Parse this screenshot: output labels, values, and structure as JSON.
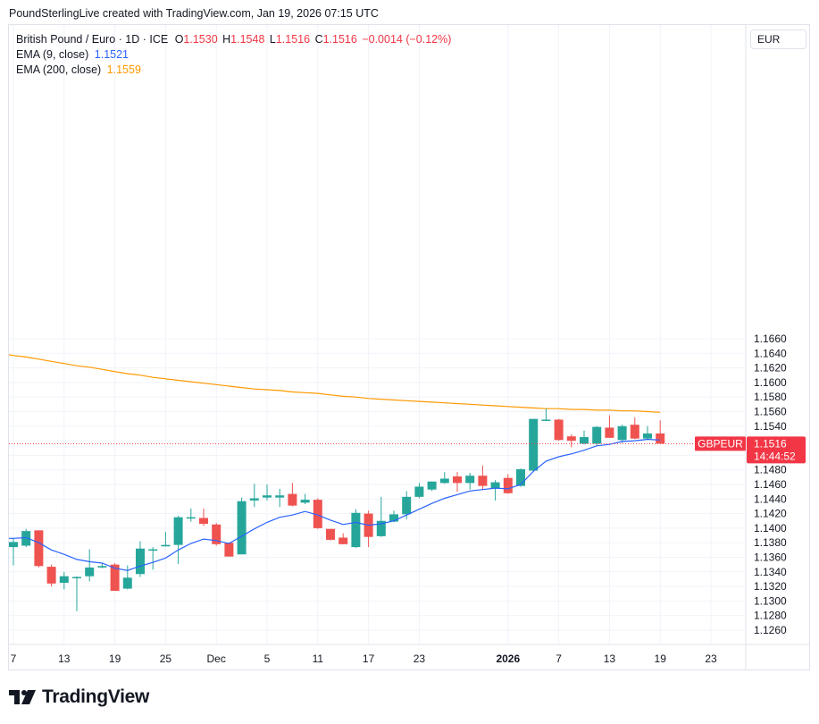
{
  "header": {
    "attribution": "PoundSterlingLive created with TradingView.com, Jan 19, 2026 07:15 UTC"
  },
  "legend": {
    "symbol": "British Pound / Euro · 1D · ICE",
    "o_label": "O",
    "o_value": "1.1530",
    "h_label": "H",
    "h_value": "1.1548",
    "l_label": "L",
    "l_value": "1.1516",
    "c_label": "C",
    "c_value": "1.1516",
    "change": "−0.0014 (−0.12%)",
    "ema9_label": "EMA (9, close)",
    "ema9_value": "1.1521",
    "ema200_label": "EMA (200, close)",
    "ema200_value": "1.1559"
  },
  "currency_button": "EUR",
  "price_tag": {
    "symbol": "GBPEUR",
    "price": "1.1516",
    "countdown": "14:44:52"
  },
  "logo_text": "TradingView",
  "colors": {
    "up": "#26a69a",
    "down": "#ef5350",
    "ema9": "#2962ff",
    "ema200": "#ff9800",
    "grid": "#f0f3fa",
    "tag": "#f23645"
  },
  "chart_data": {
    "type": "candlestick",
    "y_range": [
      1.125,
      1.166
    ],
    "y_ticks": [
      "1.1260",
      "1.1280",
      "1.1300",
      "1.1320",
      "1.1340",
      "1.1360",
      "1.1380",
      "1.1400",
      "1.1420",
      "1.1440",
      "1.1460",
      "1.1480",
      "1.1500",
      "1.1520",
      "1.1540",
      "1.1560",
      "1.1580",
      "1.1600",
      "1.1620",
      "1.1640",
      "1.1660"
    ],
    "x_ticks": [
      {
        "label": "7",
        "idx": 0
      },
      {
        "label": "13",
        "idx": 4
      },
      {
        "label": "19",
        "idx": 8
      },
      {
        "label": "25",
        "idx": 12
      },
      {
        "label": "Dec",
        "idx": 16
      },
      {
        "label": "5",
        "idx": 20
      },
      {
        "label": "11",
        "idx": 24
      },
      {
        "label": "17",
        "idx": 28
      },
      {
        "label": "23",
        "idx": 32
      },
      {
        "label": "2026",
        "idx": 39
      },
      {
        "label": "7",
        "idx": 43
      },
      {
        "label": "13",
        "idx": 47
      },
      {
        "label": "19",
        "idx": 51
      },
      {
        "label": "23",
        "idx": 55
      }
    ],
    "candles": [
      {
        "o": 1.1374,
        "h": 1.1386,
        "l": 1.1349,
        "c": 1.1381
      },
      {
        "o": 1.1376,
        "h": 1.1399,
        "l": 1.1374,
        "c": 1.1396
      },
      {
        "o": 1.1397,
        "h": 1.1397,
        "l": 1.1346,
        "c": 1.1348
      },
      {
        "o": 1.1347,
        "h": 1.135,
        "l": 1.132,
        "c": 1.1324
      },
      {
        "o": 1.1325,
        "h": 1.134,
        "l": 1.1316,
        "c": 1.1334
      },
      {
        "o": 1.1332,
        "h": 1.1334,
        "l": 1.1286,
        "c": 1.1333
      },
      {
        "o": 1.1334,
        "h": 1.1371,
        "l": 1.1327,
        "c": 1.1346
      },
      {
        "o": 1.1346,
        "h": 1.1351,
        "l": 1.1345,
        "c": 1.1348
      },
      {
        "o": 1.135,
        "h": 1.1352,
        "l": 1.1314,
        "c": 1.1314
      },
      {
        "o": 1.1317,
        "h": 1.1349,
        "l": 1.1316,
        "c": 1.1332
      },
      {
        "o": 1.1337,
        "h": 1.1382,
        "l": 1.1333,
        "c": 1.1372
      },
      {
        "o": 1.1371,
        "h": 1.1374,
        "l": 1.1343,
        "c": 1.1371
      },
      {
        "o": 1.1375,
        "h": 1.1395,
        "l": 1.1375,
        "c": 1.1377
      },
      {
        "o": 1.1377,
        "h": 1.1417,
        "l": 1.1351,
        "c": 1.1415
      },
      {
        "o": 1.1415,
        "h": 1.1427,
        "l": 1.1409,
        "c": 1.1415
      },
      {
        "o": 1.1414,
        "h": 1.1427,
        "l": 1.1403,
        "c": 1.1406
      },
      {
        "o": 1.1405,
        "h": 1.1407,
        "l": 1.1376,
        "c": 1.1378
      },
      {
        "o": 1.138,
        "h": 1.138,
        "l": 1.1361,
        "c": 1.1361
      },
      {
        "o": 1.1364,
        "h": 1.1442,
        "l": 1.1364,
        "c": 1.1437
      },
      {
        "o": 1.1438,
        "h": 1.1461,
        "l": 1.1429,
        "c": 1.1441
      },
      {
        "o": 1.1442,
        "h": 1.146,
        "l": 1.1438,
        "c": 1.1445
      },
      {
        "o": 1.1442,
        "h": 1.1454,
        "l": 1.1429,
        "c": 1.1445
      },
      {
        "o": 1.1447,
        "h": 1.1462,
        "l": 1.143,
        "c": 1.1431
      },
      {
        "o": 1.1435,
        "h": 1.1447,
        "l": 1.1433,
        "c": 1.1439
      },
      {
        "o": 1.1439,
        "h": 1.1441,
        "l": 1.1399,
        "c": 1.14
      },
      {
        "o": 1.1399,
        "h": 1.1399,
        "l": 1.1383,
        "c": 1.1384
      },
      {
        "o": 1.1387,
        "h": 1.1393,
        "l": 1.1378,
        "c": 1.1378
      },
      {
        "o": 1.1374,
        "h": 1.1426,
        "l": 1.1373,
        "c": 1.1421
      },
      {
        "o": 1.142,
        "h": 1.1424,
        "l": 1.1374,
        "c": 1.1388
      },
      {
        "o": 1.1389,
        "h": 1.1443,
        "l": 1.1388,
        "c": 1.141
      },
      {
        "o": 1.1409,
        "h": 1.1424,
        "l": 1.1408,
        "c": 1.1419
      },
      {
        "o": 1.1419,
        "h": 1.1451,
        "l": 1.1412,
        "c": 1.1443
      },
      {
        "o": 1.1443,
        "h": 1.1462,
        "l": 1.1441,
        "c": 1.1457
      },
      {
        "o": 1.1453,
        "h": 1.1464,
        "l": 1.1451,
        "c": 1.1464
      },
      {
        "o": 1.1462,
        "h": 1.1477,
        "l": 1.1461,
        "c": 1.1468
      },
      {
        "o": 1.1471,
        "h": 1.1477,
        "l": 1.145,
        "c": 1.1462
      },
      {
        "o": 1.1462,
        "h": 1.1476,
        "l": 1.1453,
        "c": 1.1472
      },
      {
        "o": 1.1472,
        "h": 1.1486,
        "l": 1.1452,
        "c": 1.1458
      },
      {
        "o": 1.1455,
        "h": 1.1466,
        "l": 1.1438,
        "c": 1.1463
      },
      {
        "o": 1.1469,
        "h": 1.1474,
        "l": 1.1447,
        "c": 1.1448
      },
      {
        "o": 1.1458,
        "h": 1.1482,
        "l": 1.1457,
        "c": 1.1481
      },
      {
        "o": 1.1479,
        "h": 1.155,
        "l": 1.1478,
        "c": 1.155
      },
      {
        "o": 1.1549,
        "h": 1.1564,
        "l": 1.1548,
        "c": 1.1549
      },
      {
        "o": 1.1549,
        "h": 1.155,
        "l": 1.152,
        "c": 1.1521
      },
      {
        "o": 1.1526,
        "h": 1.1529,
        "l": 1.1511,
        "c": 1.152
      },
      {
        "o": 1.1516,
        "h": 1.1534,
        "l": 1.1515,
        "c": 1.1525
      },
      {
        "o": 1.1516,
        "h": 1.154,
        "l": 1.1514,
        "c": 1.1539
      },
      {
        "o": 1.1538,
        "h": 1.1555,
        "l": 1.1524,
        "c": 1.1524
      },
      {
        "o": 1.1521,
        "h": 1.1542,
        "l": 1.1517,
        "c": 1.154
      },
      {
        "o": 1.1542,
        "h": 1.1552,
        "l": 1.1522,
        "c": 1.1523
      },
      {
        "o": 1.1523,
        "h": 1.154,
        "l": 1.1522,
        "c": 1.153
      },
      {
        "o": 1.153,
        "h": 1.1548,
        "l": 1.1516,
        "c": 1.1516
      }
    ],
    "ema9": [
      1.1386,
      1.1387,
      1.138,
      1.137,
      1.1364,
      1.1357,
      1.1354,
      1.1352,
      1.1345,
      1.1342,
      1.1348,
      1.1353,
      1.1359,
      1.137,
      1.1379,
      1.1385,
      1.1383,
      1.1379,
      1.1389,
      1.1399,
      1.1408,
      1.1415,
      1.1418,
      1.1423,
      1.1418,
      1.1411,
      1.1405,
      1.1408,
      1.1404,
      1.1406,
      1.141,
      1.1418,
      1.1426,
      1.1434,
      1.1441,
      1.1446,
      1.1451,
      1.1453,
      1.1455,
      1.1454,
      1.146,
      1.1478,
      1.1492,
      1.1498,
      1.1502,
      1.1507,
      1.1513,
      1.1515,
      1.1519,
      1.152,
      1.1522,
      1.1521
    ],
    "ema200": [
      1.1637,
      1.1635,
      1.1632,
      1.1629,
      1.1626,
      1.1623,
      1.1621,
      1.1618,
      1.1615,
      1.1612,
      1.161,
      1.1607,
      1.1605,
      1.1603,
      1.1601,
      1.1599,
      1.1597,
      1.1595,
      1.1593,
      1.1591,
      1.159,
      1.1589,
      1.1587,
      1.1586,
      1.1585,
      1.1583,
      1.1581,
      1.158,
      1.1578,
      1.1577,
      1.1576,
      1.1575,
      1.1574,
      1.1573,
      1.1572,
      1.1571,
      1.157,
      1.1569,
      1.1568,
      1.1567,
      1.1566,
      1.1565,
      1.1564,
      1.1564,
      1.1563,
      1.1563,
      1.1562,
      1.1562,
      1.1561,
      1.1561,
      1.156,
      1.1559
    ]
  }
}
